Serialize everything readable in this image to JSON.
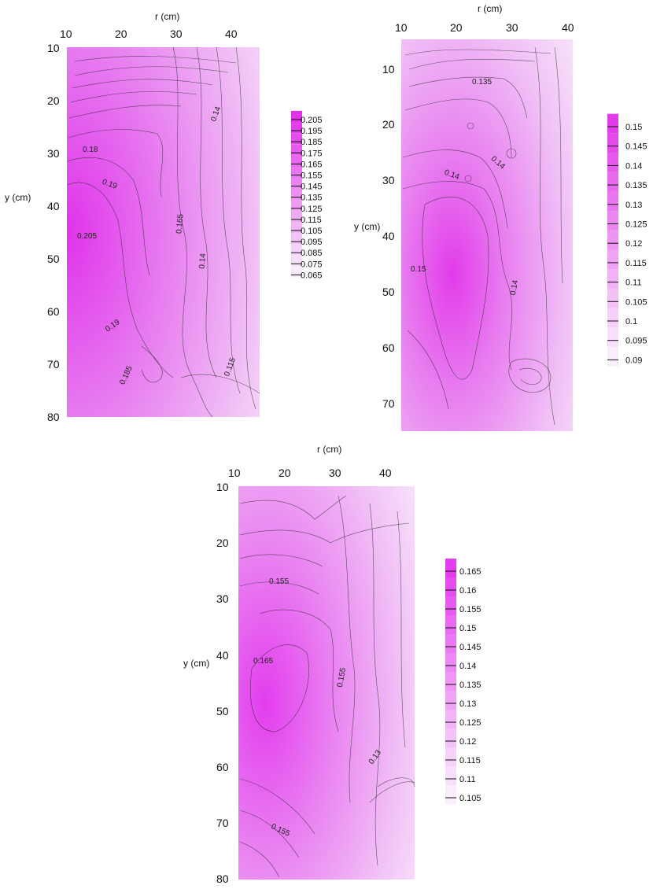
{
  "chart_data": [
    {
      "type": "contour",
      "xlabel": "r (cm)",
      "ylabel": "y (cm)",
      "x_ticks": [
        "10",
        "20",
        "30",
        "40"
      ],
      "y_ticks": [
        "10",
        "20",
        "30",
        "40",
        "50",
        "60",
        "70",
        "80"
      ],
      "xlim": [
        10,
        45
      ],
      "ylim": [
        10,
        80
      ],
      "legend_levels": [
        "0.205",
        "0.195",
        "0.185",
        "0.175",
        "0.165",
        "0.155",
        "0.145",
        "0.135",
        "0.125",
        "0.115",
        "0.105",
        "0.095",
        "0.085",
        "0.075",
        "0.065"
      ],
      "contour_labels": [
        "0.14",
        "0.18",
        "0.19",
        "0.165",
        "0.205",
        "0.14",
        "0.19",
        "0.185",
        "0.115"
      ]
    },
    {
      "type": "contour",
      "xlabel": "r (cm)",
      "ylabel": "y (cm)",
      "x_ticks": [
        "10",
        "20",
        "30",
        "40"
      ],
      "y_ticks": [
        "10",
        "20",
        "30",
        "40",
        "50",
        "60",
        "70"
      ],
      "xlim": [
        10,
        40
      ],
      "ylim": [
        5,
        75
      ],
      "legend_levels": [
        "0.15",
        "0.145",
        "0.14",
        "0.135",
        "0.13",
        "0.125",
        "0.12",
        "0.115",
        "0.11",
        "0.105",
        "0.1",
        "0.095",
        "0.09"
      ],
      "contour_labels": [
        "0.135",
        "0.14",
        "0.14",
        "0.15",
        "0.14"
      ]
    },
    {
      "type": "contour",
      "xlabel": "r (cm)",
      "ylabel": "y (cm)",
      "x_ticks": [
        "10",
        "20",
        "30",
        "40"
      ],
      "y_ticks": [
        "10",
        "20",
        "30",
        "40",
        "50",
        "60",
        "70",
        "80"
      ],
      "xlim": [
        10,
        45
      ],
      "ylim": [
        10,
        80
      ],
      "legend_levels": [
        "0.165",
        "0.16",
        "0.155",
        "0.15",
        "0.145",
        "0.14",
        "0.135",
        "0.13",
        "0.125",
        "0.12",
        "0.115",
        "0.11",
        "0.105"
      ],
      "contour_labels": [
        "0.155",
        "0.165",
        "0.155",
        "0.13",
        "0.155"
      ]
    }
  ]
}
